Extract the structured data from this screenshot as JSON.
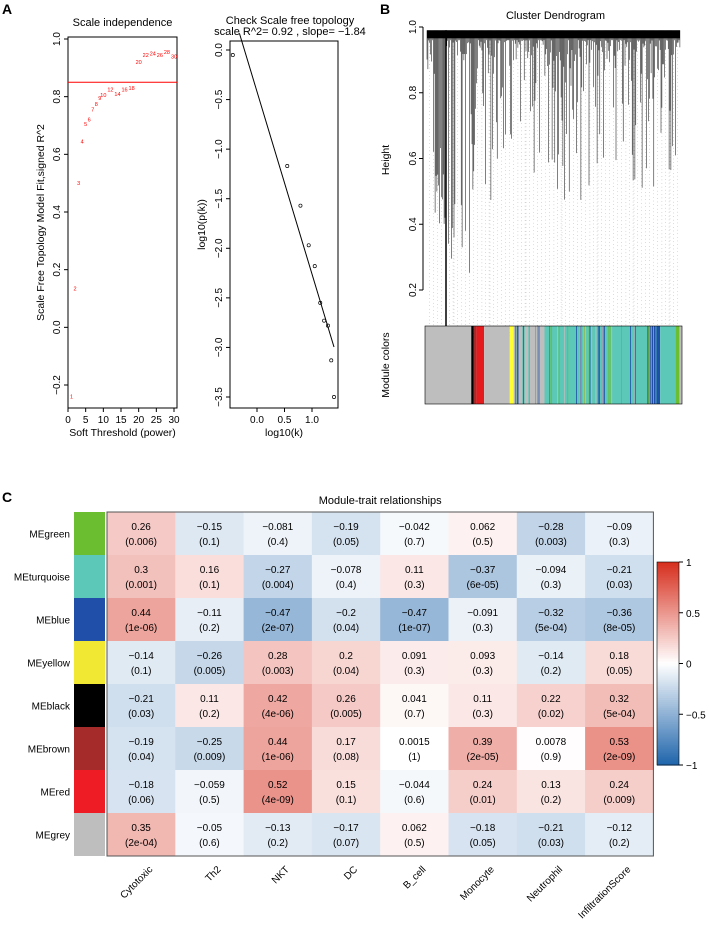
{
  "panels": {
    "a": "A",
    "b": "B",
    "c": "C"
  },
  "chart_data": [
    {
      "type": "scatter",
      "title": "Scale independence",
      "xlabel": "Soft Threshold (power)",
      "ylabel": "Scale Free Topology Model Fit,signed R^2",
      "xlim": [
        0,
        30
      ],
      "ylim": [
        -0.27,
        1.0
      ],
      "xticks": [
        0,
        5,
        10,
        15,
        20,
        25,
        30
      ],
      "yticks": [
        -0.2,
        0.0,
        0.2,
        0.4,
        0.6,
        0.8,
        1.0
      ],
      "threshold_line": 0.85,
      "point_color": "#ff0000",
      "points": [
        {
          "x": 1,
          "y": -0.24
        },
        {
          "x": 2,
          "y": 0.135
        },
        {
          "x": 3,
          "y": 0.5
        },
        {
          "x": 4,
          "y": 0.645
        },
        {
          "x": 5,
          "y": 0.705
        },
        {
          "x": 6,
          "y": 0.72
        },
        {
          "x": 7,
          "y": 0.755
        },
        {
          "x": 8,
          "y": 0.775
        },
        {
          "x": 9,
          "y": 0.795
        },
        {
          "x": 10,
          "y": 0.805
        },
        {
          "x": 12,
          "y": 0.825
        },
        {
          "x": 14,
          "y": 0.81
        },
        {
          "x": 16,
          "y": 0.825
        },
        {
          "x": 18,
          "y": 0.83
        },
        {
          "x": 20,
          "y": 0.92
        },
        {
          "x": 22,
          "y": 0.945
        },
        {
          "x": 24,
          "y": 0.95
        },
        {
          "x": 26,
          "y": 0.945
        },
        {
          "x": 28,
          "y": 0.955
        },
        {
          "x": 30,
          "y": 0.94
        }
      ]
    },
    {
      "type": "scatter",
      "title": "Check Scale free topology",
      "subtitle": "scale R^2= 0.92 , slope= −1.84",
      "xlabel": "log10(k)",
      "ylabel": "log10(p(k))",
      "xlim": [
        -0.5,
        1.45
      ],
      "ylim": [
        -3.7,
        0.1
      ],
      "xticks": [
        0.0,
        0.5,
        1.0
      ],
      "yticks": [
        0.0,
        -0.5,
        -1.0,
        -1.5,
        -2.0,
        -2.5,
        -3.0,
        -3.5
      ],
      "fit": {
        "intercept": -0.42,
        "slope": -1.84,
        "x_range": [
          -0.32,
          1.4
        ]
      },
      "points": [
        {
          "x": -0.44,
          "y": -0.05
        },
        {
          "x": 0.55,
          "y": -1.17
        },
        {
          "x": 0.79,
          "y": -1.57
        },
        {
          "x": 0.94,
          "y": -1.97
        },
        {
          "x": 1.05,
          "y": -2.18
        },
        {
          "x": 1.15,
          "y": -2.55
        },
        {
          "x": 1.22,
          "y": -2.73
        },
        {
          "x": 1.29,
          "y": -2.78
        },
        {
          "x": 1.35,
          "y": -3.13
        },
        {
          "x": 1.4,
          "y": -3.5
        }
      ]
    },
    {
      "type": "dendrogram",
      "title": "Cluster Dendrogram",
      "ylabel": "Height",
      "ylim": [
        0.05,
        1.0
      ],
      "yticks": [
        0.2,
        0.4,
        0.6,
        0.8,
        1.0
      ],
      "color_bar_label": "Module colors",
      "module_color_segments": [
        {
          "color": "#bebebe",
          "proportion": 0.18
        },
        {
          "color": "#000000",
          "proportion": 0.01
        },
        {
          "color": "#a52a2a",
          "proportion": 0.01
        },
        {
          "color": "#e41a1c",
          "proportion": 0.03
        },
        {
          "color": "#bebebe",
          "proportion": 0.1
        },
        {
          "color": "#ffff33",
          "proportion": 0.015
        },
        {
          "color": "#bebebe",
          "proportion": 0.12
        },
        {
          "color": "#5cc8b8",
          "proportion": 0.4
        },
        {
          "color": "#1f4fa8",
          "proportion": 0.05
        },
        {
          "color": "#5cc8b8",
          "proportion": 0.06
        },
        {
          "color": "#6abe30",
          "proportion": 0.015
        },
        {
          "color": "#bebebe",
          "proportion": 0.01
        }
      ]
    },
    {
      "type": "heatmap",
      "title": "Module-trait relationships",
      "rows": [
        "MEgreen",
        "MEturquoise",
        "MEblue",
        "MEyellow",
        "MEblack",
        "MEbrown",
        "MEred",
        "MEgrey"
      ],
      "row_colors": [
        "#6abe30",
        "#5cc8b8",
        "#1f4fa8",
        "#f0e832",
        "#000000",
        "#a52a2a",
        "#ee1c24",
        "#bebebe"
      ],
      "columns": [
        "Cytotoxic",
        "Th2",
        "NKT",
        "DC",
        "B_cell",
        "Monocyte",
        "Neutrophil",
        "InfiltrationScore"
      ],
      "values": [
        [
          "0.26",
          "-0.15",
          "-0.081",
          "-0.19",
          "-0.042",
          "0.062",
          "-0.28",
          "-0.09"
        ],
        [
          "0.3",
          "0.16",
          "-0.27",
          "-0.078",
          "0.11",
          "-0.37",
          "-0.094",
          "-0.21"
        ],
        [
          "0.44",
          "-0.11",
          "-0.47",
          "-0.2",
          "-0.47",
          "-0.091",
          "-0.32",
          "-0.36"
        ],
        [
          "-0.14",
          "-0.26",
          "0.28",
          "0.2",
          "0.091",
          "0.093",
          "-0.14",
          "0.18"
        ],
        [
          "-0.21",
          "0.11",
          "0.42",
          "0.26",
          "0.041",
          "0.11",
          "0.22",
          "0.32"
        ],
        [
          "-0.19",
          "-0.25",
          "0.44",
          "0.17",
          "0.0015",
          "0.39",
          "0.0078",
          "0.53"
        ],
        [
          "-0.18",
          "-0.059",
          "0.52",
          "0.15",
          "-0.044",
          "0.24",
          "0.13",
          "0.24"
        ],
        [
          "0.35",
          "-0.05",
          "-0.13",
          "-0.17",
          "0.062",
          "-0.18",
          "-0.21",
          "-0.12"
        ]
      ],
      "pvalues": [
        [
          "(0.006)",
          "(0.1)",
          "(0.4)",
          "(0.05)",
          "(0.7)",
          "(0.5)",
          "(0.003)",
          "(0.3)"
        ],
        [
          "(0.001)",
          "(0.1)",
          "(0.004)",
          "(0.4)",
          "(0.3)",
          "(6e-05)",
          "(0.3)",
          "(0.03)"
        ],
        [
          "(1e-06)",
          "(0.2)",
          "(2e-07)",
          "(0.04)",
          "(1e-07)",
          "(0.3)",
          "(5e-04)",
          "(8e-05)"
        ],
        [
          "(0.1)",
          "(0.005)",
          "(0.003)",
          "(0.04)",
          "(0.3)",
          "(0.3)",
          "(0.2)",
          "(0.05)"
        ],
        [
          "(0.03)",
          "(0.2)",
          "(4e-06)",
          "(0.005)",
          "(0.7)",
          "(0.3)",
          "(0.02)",
          "(5e-04)"
        ],
        [
          "(0.04)",
          "(0.009)",
          "(1e-06)",
          "(0.08)",
          "(1)",
          "(2e-05)",
          "(0.9)",
          "(2e-09)"
        ],
        [
          "(0.06)",
          "(0.5)",
          "(4e-09)",
          "(0.1)",
          "(0.6)",
          "(0.01)",
          "(0.2)",
          "(0.009)"
        ],
        [
          "(2e-04)",
          "(0.6)",
          "(0.2)",
          "(0.07)",
          "(0.5)",
          "(0.05)",
          "(0.03)",
          "(0.2)"
        ]
      ],
      "colorbar": {
        "range": [
          -1,
          1
        ],
        "ticks": [
          "1",
          "0.5",
          "0",
          "−0.5",
          "−1"
        ],
        "low": "#2166ac",
        "mid": "#ffffff",
        "high": "#d7301f"
      }
    }
  ]
}
